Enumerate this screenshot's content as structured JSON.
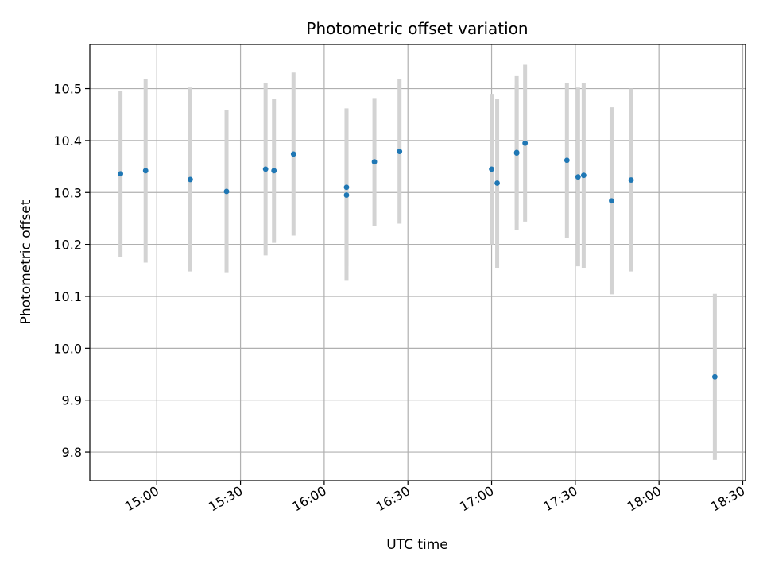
{
  "chart_data": {
    "type": "scatter",
    "title": "Photometric offset variation",
    "xlabel": "UTC time",
    "ylabel": "Photometric offset",
    "x_ticks": [
      "15:00",
      "15:30",
      "16:00",
      "16:30",
      "17:00",
      "17:30",
      "18:00",
      "18:30"
    ],
    "y_ticks": [
      9.8,
      9.9,
      10.0,
      10.1,
      10.2,
      10.3,
      10.4,
      10.5
    ],
    "xlim": [
      "14:36",
      "18:31"
    ],
    "ylim": [
      9.745,
      10.585
    ],
    "grid": true,
    "marker_color": "#1f77b4",
    "errorbar_color": "#d3d3d3",
    "points": [
      {
        "x": "14:47",
        "y": 10.336,
        "err": 0.16
      },
      {
        "x": "14:56",
        "y": 10.342,
        "err": 0.177
      },
      {
        "x": "15:12",
        "y": 10.325,
        "err": 0.177
      },
      {
        "x": "15:25",
        "y": 10.302,
        "err": 0.157
      },
      {
        "x": "15:39",
        "y": 10.345,
        "err": 0.166
      },
      {
        "x": "15:42",
        "y": 10.342,
        "err": 0.139
      },
      {
        "x": "15:49",
        "y": 10.374,
        "err": 0.157
      },
      {
        "x": "16:08",
        "y": 10.295,
        "err": 0.165
      },
      {
        "x": "16:08",
        "y": 10.31,
        "err": 0.152
      },
      {
        "x": "16:18",
        "y": 10.359,
        "err": 0.123
      },
      {
        "x": "16:27",
        "y": 10.379,
        "err": 0.139
      },
      {
        "x": "17:00",
        "y": 10.345,
        "err": 0.145
      },
      {
        "x": "17:02",
        "y": 10.318,
        "err": 0.163
      },
      {
        "x": "17:09",
        "y": 10.376,
        "err": 0.148
      },
      {
        "x": "17:09",
        "y": 10.377,
        "err": 0.13
      },
      {
        "x": "17:12",
        "y": 10.395,
        "err": 0.151
      },
      {
        "x": "17:27",
        "y": 10.362,
        "err": 0.149
      },
      {
        "x": "17:31",
        "y": 10.33,
        "err": 0.172
      },
      {
        "x": "17:33",
        "y": 10.333,
        "err": 0.178
      },
      {
        "x": "17:43",
        "y": 10.284,
        "err": 0.18
      },
      {
        "x": "17:50",
        "y": 10.324,
        "err": 0.176
      },
      {
        "x": "18:20",
        "y": 9.945,
        "err": 0.16
      }
    ]
  }
}
